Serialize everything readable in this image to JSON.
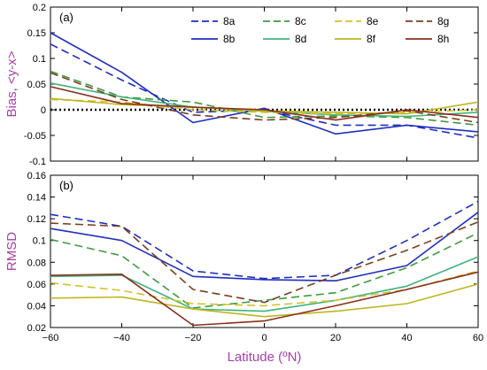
{
  "chart_data": [
    {
      "type": "line",
      "panel_label": "(a)",
      "ylabel": "Bias, <y-x>",
      "xlim": [
        -60,
        60
      ],
      "ylim": [
        -0.1,
        0.2
      ],
      "xticks": [
        -60,
        -40,
        -20,
        0,
        20,
        40,
        60
      ],
      "yticks": [
        -0.1,
        -0.05,
        0,
        0.05,
        0.1,
        0.15,
        0.2
      ],
      "ytick_labels": [
        "-0.1",
        "-0.05",
        "0",
        "0.05",
        "0.1",
        "0.15",
        "0.2"
      ],
      "reference_line": {
        "y": 0,
        "style": "dotted",
        "color": "#000000"
      },
      "x": [
        -60,
        -40,
        -20,
        0,
        20,
        40,
        60
      ],
      "series": [
        {
          "name": "8a",
          "color": "#1f2fbf",
          "dash": "dashed",
          "values": [
            0.128,
            0.058,
            -0.005,
            0.0,
            -0.03,
            -0.03,
            -0.055
          ]
        },
        {
          "name": "8b",
          "color": "#1f2fbf",
          "dash": "solid",
          "values": [
            0.15,
            0.073,
            -0.025,
            0.003,
            -0.047,
            -0.03,
            -0.043
          ]
        },
        {
          "name": "8c",
          "color": "#3f9a3f",
          "dash": "dashed",
          "values": [
            0.075,
            0.025,
            0.015,
            -0.015,
            -0.012,
            -0.015,
            -0.03
          ]
        },
        {
          "name": "8d",
          "color": "#3fb47a",
          "dash": "solid",
          "values": [
            0.052,
            0.025,
            0.005,
            -0.003,
            -0.01,
            -0.013,
            -0.005
          ]
        },
        {
          "name": "8e",
          "color": "#d4c22a",
          "dash": "dashed",
          "values": [
            0.02,
            0.015,
            0.0,
            -0.005,
            -0.008,
            -0.005,
            0.0
          ]
        },
        {
          "name": "8f",
          "color": "#bfb51f",
          "dash": "solid",
          "values": [
            0.022,
            0.01,
            0.005,
            -0.002,
            -0.005,
            -0.008,
            0.015
          ]
        },
        {
          "name": "8g",
          "color": "#7a3f1f",
          "dash": "dashed",
          "values": [
            0.072,
            0.02,
            -0.01,
            -0.02,
            -0.015,
            -0.002,
            -0.025
          ]
        },
        {
          "name": "8h",
          "color": "#8a2f1f",
          "dash": "solid",
          "values": [
            0.045,
            0.012,
            0.005,
            0.0,
            -0.02,
            0.0,
            -0.015
          ]
        }
      ],
      "legend": {
        "placement": "top-right",
        "columns": 4
      }
    },
    {
      "type": "line",
      "panel_label": "(b)",
      "ylabel": "RMSD",
      "xlabel": "Latitude (ºN)",
      "xlim": [
        -60,
        60
      ],
      "ylim": [
        0.02,
        0.16
      ],
      "xticks": [
        -60,
        -40,
        -20,
        0,
        20,
        40,
        60
      ],
      "xtick_labels": [
        "−60",
        "−40",
        "−20",
        "0",
        "20",
        "40",
        "60"
      ],
      "yticks": [
        0.02,
        0.04,
        0.06,
        0.08,
        0.1,
        0.12,
        0.14,
        0.16
      ],
      "ytick_labels": [
        "0.02",
        "0.04",
        "0.06",
        "0.08",
        "0.1",
        "0.12",
        "0.14",
        "0.16"
      ],
      "x": [
        -60,
        -40,
        -20,
        0,
        20,
        40,
        60
      ],
      "series": [
        {
          "name": "8a",
          "color": "#1f2fbf",
          "dash": "dashed",
          "values": [
            0.124,
            0.113,
            0.072,
            0.065,
            0.068,
            0.1,
            0.136
          ]
        },
        {
          "name": "8b",
          "color": "#1f2fbf",
          "dash": "solid",
          "values": [
            0.111,
            0.1,
            0.067,
            0.064,
            0.063,
            0.077,
            0.126
          ]
        },
        {
          "name": "8c",
          "color": "#3f9a3f",
          "dash": "dashed",
          "values": [
            0.101,
            0.086,
            0.038,
            0.045,
            0.052,
            0.075,
            0.107
          ]
        },
        {
          "name": "8d",
          "color": "#3fb47a",
          "dash": "solid",
          "values": [
            0.067,
            0.068,
            0.037,
            0.035,
            0.045,
            0.058,
            0.085
          ]
        },
        {
          "name": "8e",
          "color": "#d4c22a",
          "dash": "dashed",
          "values": [
            0.061,
            0.054,
            0.042,
            0.04,
            0.045,
            0.055,
            0.072
          ]
        },
        {
          "name": "8f",
          "color": "#bfb51f",
          "dash": "solid",
          "values": [
            0.047,
            0.048,
            0.037,
            0.03,
            0.035,
            0.042,
            0.06
          ]
        },
        {
          "name": "8g",
          "color": "#7a3f1f",
          "dash": "dashed",
          "values": [
            0.116,
            0.113,
            0.055,
            0.043,
            0.068,
            0.091,
            0.117
          ]
        },
        {
          "name": "8h",
          "color": "#8a2f1f",
          "dash": "solid",
          "values": [
            0.068,
            0.069,
            0.022,
            0.026,
            0.04,
            0.055,
            0.071
          ]
        }
      ]
    }
  ]
}
